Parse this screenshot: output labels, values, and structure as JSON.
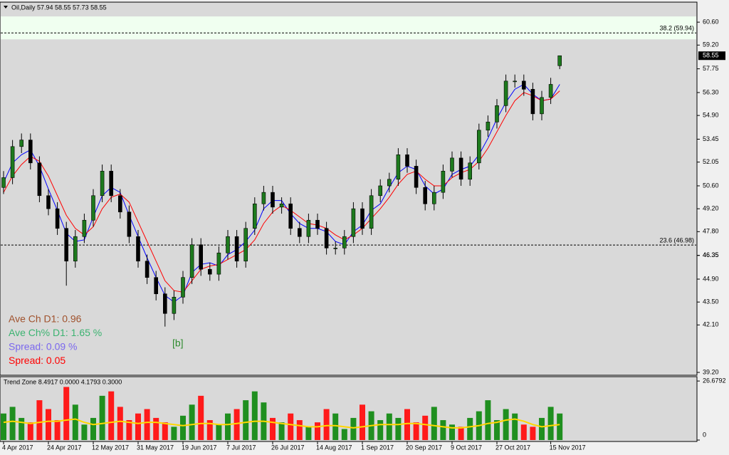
{
  "chart_data": [
    {
      "type": "candlestick",
      "header": "Oil,Daily  57.94 58.55 57.73 58.55",
      "categories": [
        "4 Apr 2017",
        null,
        null,
        null,
        null,
        "24 Apr 2017",
        null,
        null,
        null,
        null,
        "12 May 2017",
        null,
        null,
        null,
        null,
        "31 May 2017",
        null,
        null,
        null,
        null,
        "19 Jun 2017",
        null,
        null,
        null,
        null,
        "7 Jul 2017",
        null,
        null,
        null,
        null,
        "26 Jul 2017",
        null,
        null,
        null,
        null,
        "14 Aug 2017",
        null,
        null,
        null,
        null,
        "1 Sep 2017",
        null,
        null,
        null,
        null,
        "20 Sep 2017",
        null,
        null,
        null,
        null,
        "9 Oct 2017",
        null,
        null,
        null,
        null,
        "27 Oct 2017",
        null,
        null,
        null,
        null,
        null,
        "15 Nov 2017",
        null
      ],
      "open": [
        50.5,
        51.1,
        53.0,
        53.4,
        52.0,
        50.0,
        49.2,
        48.0,
        46.0,
        47.5,
        48.5,
        50.0,
        51.5,
        50.0,
        49.0,
        47.5,
        46.0,
        45.0,
        44.0,
        42.8,
        43.8,
        45.0,
        47.0,
        45.5,
        45.2,
        46.5,
        47.5,
        46.0,
        48.0,
        49.5,
        50.2,
        49.3,
        49.5,
        48.0,
        47.5,
        48.5,
        48.0,
        46.8,
        46.8,
        47.5,
        49.2,
        48.0,
        50.0,
        50.6,
        51.0,
        52.5,
        51.8,
        50.5,
        49.5,
        50.2,
        51.5,
        52.3,
        51.0,
        52.0,
        54.0,
        54.5,
        55.5,
        57.0,
        57.0,
        56.5,
        55.0,
        56.0,
        57.94
      ],
      "high": [
        51.5,
        53.4,
        53.8,
        53.8,
        52.4,
        50.4,
        49.6,
        48.4,
        47.9,
        48.9,
        50.4,
        51.9,
        51.9,
        50.4,
        49.4,
        47.9,
        46.4,
        45.4,
        44.4,
        44.2,
        45.4,
        47.4,
        47.4,
        45.9,
        46.9,
        47.9,
        47.9,
        48.4,
        49.9,
        50.6,
        50.6,
        49.9,
        49.9,
        48.4,
        48.9,
        48.9,
        48.4,
        47.2,
        47.9,
        49.6,
        49.6,
        50.4,
        51.0,
        51.4,
        52.9,
        52.9,
        52.2,
        50.9,
        50.6,
        51.9,
        52.7,
        52.7,
        52.4,
        54.4,
        54.9,
        55.9,
        57.4,
        57.4,
        57.4,
        56.9,
        56.4,
        57.2,
        58.55
      ],
      "low": [
        50.1,
        50.7,
        52.6,
        51.6,
        49.6,
        48.8,
        47.6,
        44.5,
        45.6,
        47.1,
        48.1,
        49.6,
        49.6,
        48.6,
        47.1,
        45.6,
        44.6,
        43.6,
        42.0,
        42.4,
        43.4,
        44.6,
        45.1,
        44.8,
        44.8,
        46.1,
        45.6,
        45.6,
        47.6,
        49.1,
        48.9,
        48.9,
        47.6,
        47.1,
        47.1,
        47.6,
        46.4,
        46.4,
        46.4,
        47.1,
        47.6,
        47.6,
        49.6,
        50.2,
        50.6,
        51.4,
        50.1,
        49.1,
        49.1,
        49.8,
        51.1,
        50.6,
        50.6,
        51.6,
        53.6,
        54.1,
        55.1,
        56.6,
        56.1,
        54.6,
        54.6,
        55.6,
        57.73
      ],
      "close": [
        51.1,
        53.0,
        53.4,
        52.0,
        50.0,
        49.2,
        48.0,
        46.0,
        47.5,
        48.5,
        50.0,
        51.5,
        50.0,
        49.0,
        47.5,
        46.0,
        45.0,
        44.0,
        42.8,
        43.8,
        45.0,
        47.0,
        45.5,
        45.2,
        46.5,
        47.5,
        46.0,
        48.0,
        49.5,
        50.2,
        49.3,
        49.5,
        48.0,
        47.5,
        48.5,
        48.0,
        46.8,
        46.8,
        47.5,
        49.2,
        48.0,
        50.0,
        50.6,
        51.0,
        52.5,
        51.8,
        50.5,
        49.5,
        50.2,
        51.5,
        52.3,
        51.0,
        52.0,
        54.0,
        54.5,
        55.5,
        57.0,
        57.0,
        56.5,
        55.0,
        56.0,
        56.8,
        58.55
      ],
      "up_color": "#1d7a1d",
      "down_color": "#000000",
      "series": [
        {
          "color": "#0000ff",
          "values": [
            50.8,
            52.0,
            52.5,
            52.8,
            51.8,
            50.4,
            49.1,
            47.7,
            47.2,
            47.3,
            48.7,
            50.0,
            50.5,
            50.2,
            48.8,
            47.5,
            46.2,
            45.0,
            43.9,
            43.5,
            43.9,
            45.3,
            45.8,
            45.9,
            45.7,
            46.4,
            46.7,
            47.2,
            47.9,
            49.2,
            49.7,
            49.7,
            48.9,
            48.3,
            48.0,
            48.0,
            47.8,
            47.2,
            47.0,
            47.8,
            48.2,
            49.1,
            49.5,
            50.5,
            51.4,
            51.8,
            51.6,
            50.6,
            50.1,
            50.4,
            51.3,
            51.6,
            51.8,
            52.5,
            53.5,
            54.7,
            55.7,
            56.5,
            56.8,
            56.2,
            55.8,
            55.9,
            56.8
          ]
        },
        {
          "color": "#ff0000",
          "values": [
            50.2,
            51.2,
            51.9,
            52.4,
            52.1,
            51.2,
            50.0,
            48.8,
            48.0,
            47.6,
            48.1,
            49.2,
            49.9,
            50.1,
            49.6,
            48.4,
            47.2,
            46.0,
            44.8,
            44.2,
            44.1,
            44.8,
            45.5,
            45.7,
            45.8,
            46.1,
            46.4,
            46.7,
            47.3,
            48.3,
            49.0,
            49.4,
            49.1,
            48.7,
            48.3,
            48.2,
            48.0,
            47.6,
            47.3,
            47.6,
            48.0,
            48.6,
            49.2,
            49.9,
            50.7,
            51.3,
            51.5,
            51.0,
            50.6,
            50.6,
            51.1,
            51.4,
            51.6,
            52.1,
            52.9,
            53.9,
            54.9,
            55.8,
            56.3,
            56.1,
            55.8,
            55.9,
            56.4
          ]
        }
      ],
      "ylim": [
        39.07,
        61.78
      ],
      "yticks": [
        {
          "value": 60.6,
          "label": "60.60"
        },
        {
          "value": 59.2,
          "label": "59.20"
        },
        57.75,
        {
          "value": 56.3,
          "label": "56.30"
        },
        {
          "value": 54.9,
          "label": "54.90"
        },
        53.45,
        52.05,
        {
          "value": 50.6,
          "label": "50.60"
        },
        {
          "value": 49.2,
          "label": "49.20"
        },
        {
          "value": 47.8,
          "label": "47.80"
        },
        46.35,
        {
          "value": 44.9,
          "label": "44.90"
        },
        {
          "value": 43.5,
          "label": "43.50"
        },
        {
          "value": 42.1,
          "label": "42.10"
        },
        46.35,
        {
          "value": 39.2,
          "label": "39.20"
        }
      ],
      "zone": [
        59.55,
        60.95
      ],
      "levels": [
        {
          "text": "38.2  (59.94)",
          "value": 59.94
        },
        {
          "text": "23.6  (46.98)",
          "value": 46.98
        }
      ],
      "last_price": 58.55,
      "info": [
        {
          "text": "Ave Ch D1: 0.96",
          "color": "#a0522d"
        },
        {
          "text": "Ave Ch% D1: 1.65 %",
          "color": "#3cb371"
        },
        {
          "text": "Spread: 0.09 %",
          "color": "#7b68ee"
        },
        {
          "text": "Spread: 0.05",
          "color": "#ff0000"
        }
      ],
      "marker": "[b]"
    },
    {
      "type": "histogram-indicator",
      "title": "Trend Zone 8.4917 0.0000 4.1793 0.3000",
      "values": [
        12,
        15,
        10,
        8,
        18,
        14,
        9,
        24,
        16,
        7,
        10,
        20,
        22,
        15,
        9,
        12,
        14,
        10,
        8,
        6,
        11,
        16,
        20,
        9,
        7,
        12,
        14,
        18,
        22,
        17,
        10,
        8,
        12,
        9,
        6,
        8,
        14,
        12,
        5,
        10,
        16,
        13,
        9,
        12,
        10,
        14,
        8,
        11,
        15,
        9,
        7,
        6,
        10,
        13,
        18,
        9,
        14,
        12,
        7,
        6,
        10,
        15,
        12
      ],
      "line": {
        "color": "#ffd700",
        "values": [
          8,
          8.5,
          8,
          7.5,
          8,
          8.5,
          8.5,
          9,
          9.5,
          8,
          7,
          7.5,
          8,
          8.5,
          8,
          7.5,
          8,
          8,
          7.5,
          7,
          6.5,
          7,
          7.5,
          7.5,
          7,
          7,
          7.5,
          8,
          8.5,
          8.5,
          8,
          7.5,
          7,
          6.5,
          6,
          6,
          6.5,
          6.5,
          6,
          5.5,
          6,
          6.5,
          7,
          7,
          7,
          7.5,
          7.5,
          7,
          6.5,
          6,
          5.5,
          5.5,
          6,
          6.5,
          7.5,
          8,
          9,
          9.5,
          8.5,
          7,
          6,
          6.5,
          7
        ]
      },
      "up_color": "#1f8f1f",
      "down_color": "#ff1a1a",
      "ylim": [
        0,
        28
      ],
      "yticks": [
        26.6792,
        0
      ]
    }
  ]
}
